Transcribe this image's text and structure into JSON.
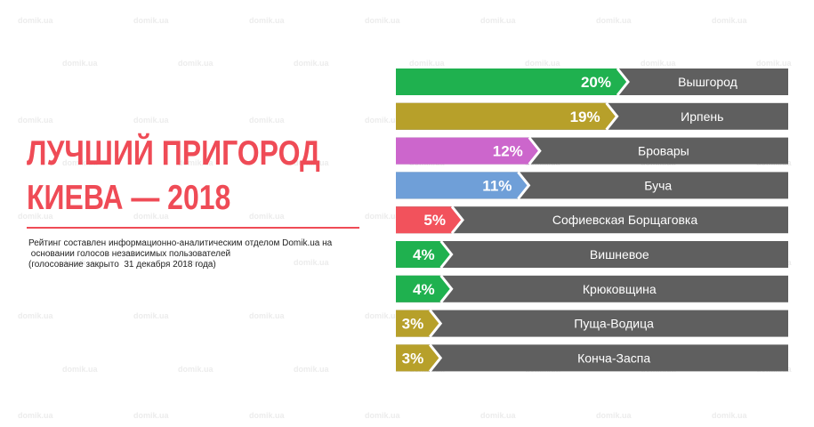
{
  "watermark": "domik.ua",
  "title_lines": [
    "ЛУЧШИЙ ПРИГОРОД",
    "КИЕВА — 2018"
  ],
  "subtitle_lines": [
    "Рейтинг составлен информационно-аналитическим отделом Domik.ua на",
    " основании голосов независимых пользователей",
    "(голосование закрыто  31 декабря 2018 года)"
  ],
  "colors": {
    "title": "#ef4b56",
    "bar_background": "#5f5f5f",
    "label_text": "#ffffff"
  },
  "chart_data": {
    "type": "bar",
    "orientation": "horizontal",
    "unit": "%",
    "categories": [
      "Вышгород",
      "Ирпень",
      "Бровары",
      "Буча",
      "Софиевская Борщаговка",
      "Вишневое",
      "Крюковщина",
      "Пуща-Водица",
      "Конча-Заспа"
    ],
    "values": [
      20,
      19,
      12,
      11,
      5,
      4,
      4,
      3,
      3
    ],
    "value_labels": [
      "20%",
      "19%",
      "12%",
      "11%",
      "5%",
      "4%",
      "4%",
      "3%",
      "3%"
    ],
    "bar_colors": [
      "#1fb14f",
      "#b7a02a",
      "#cc66cc",
      "#6f9fd8",
      "#f2525c",
      "#1fb14f",
      "#1fb14f",
      "#b7a02a",
      "#b7a02a"
    ]
  }
}
